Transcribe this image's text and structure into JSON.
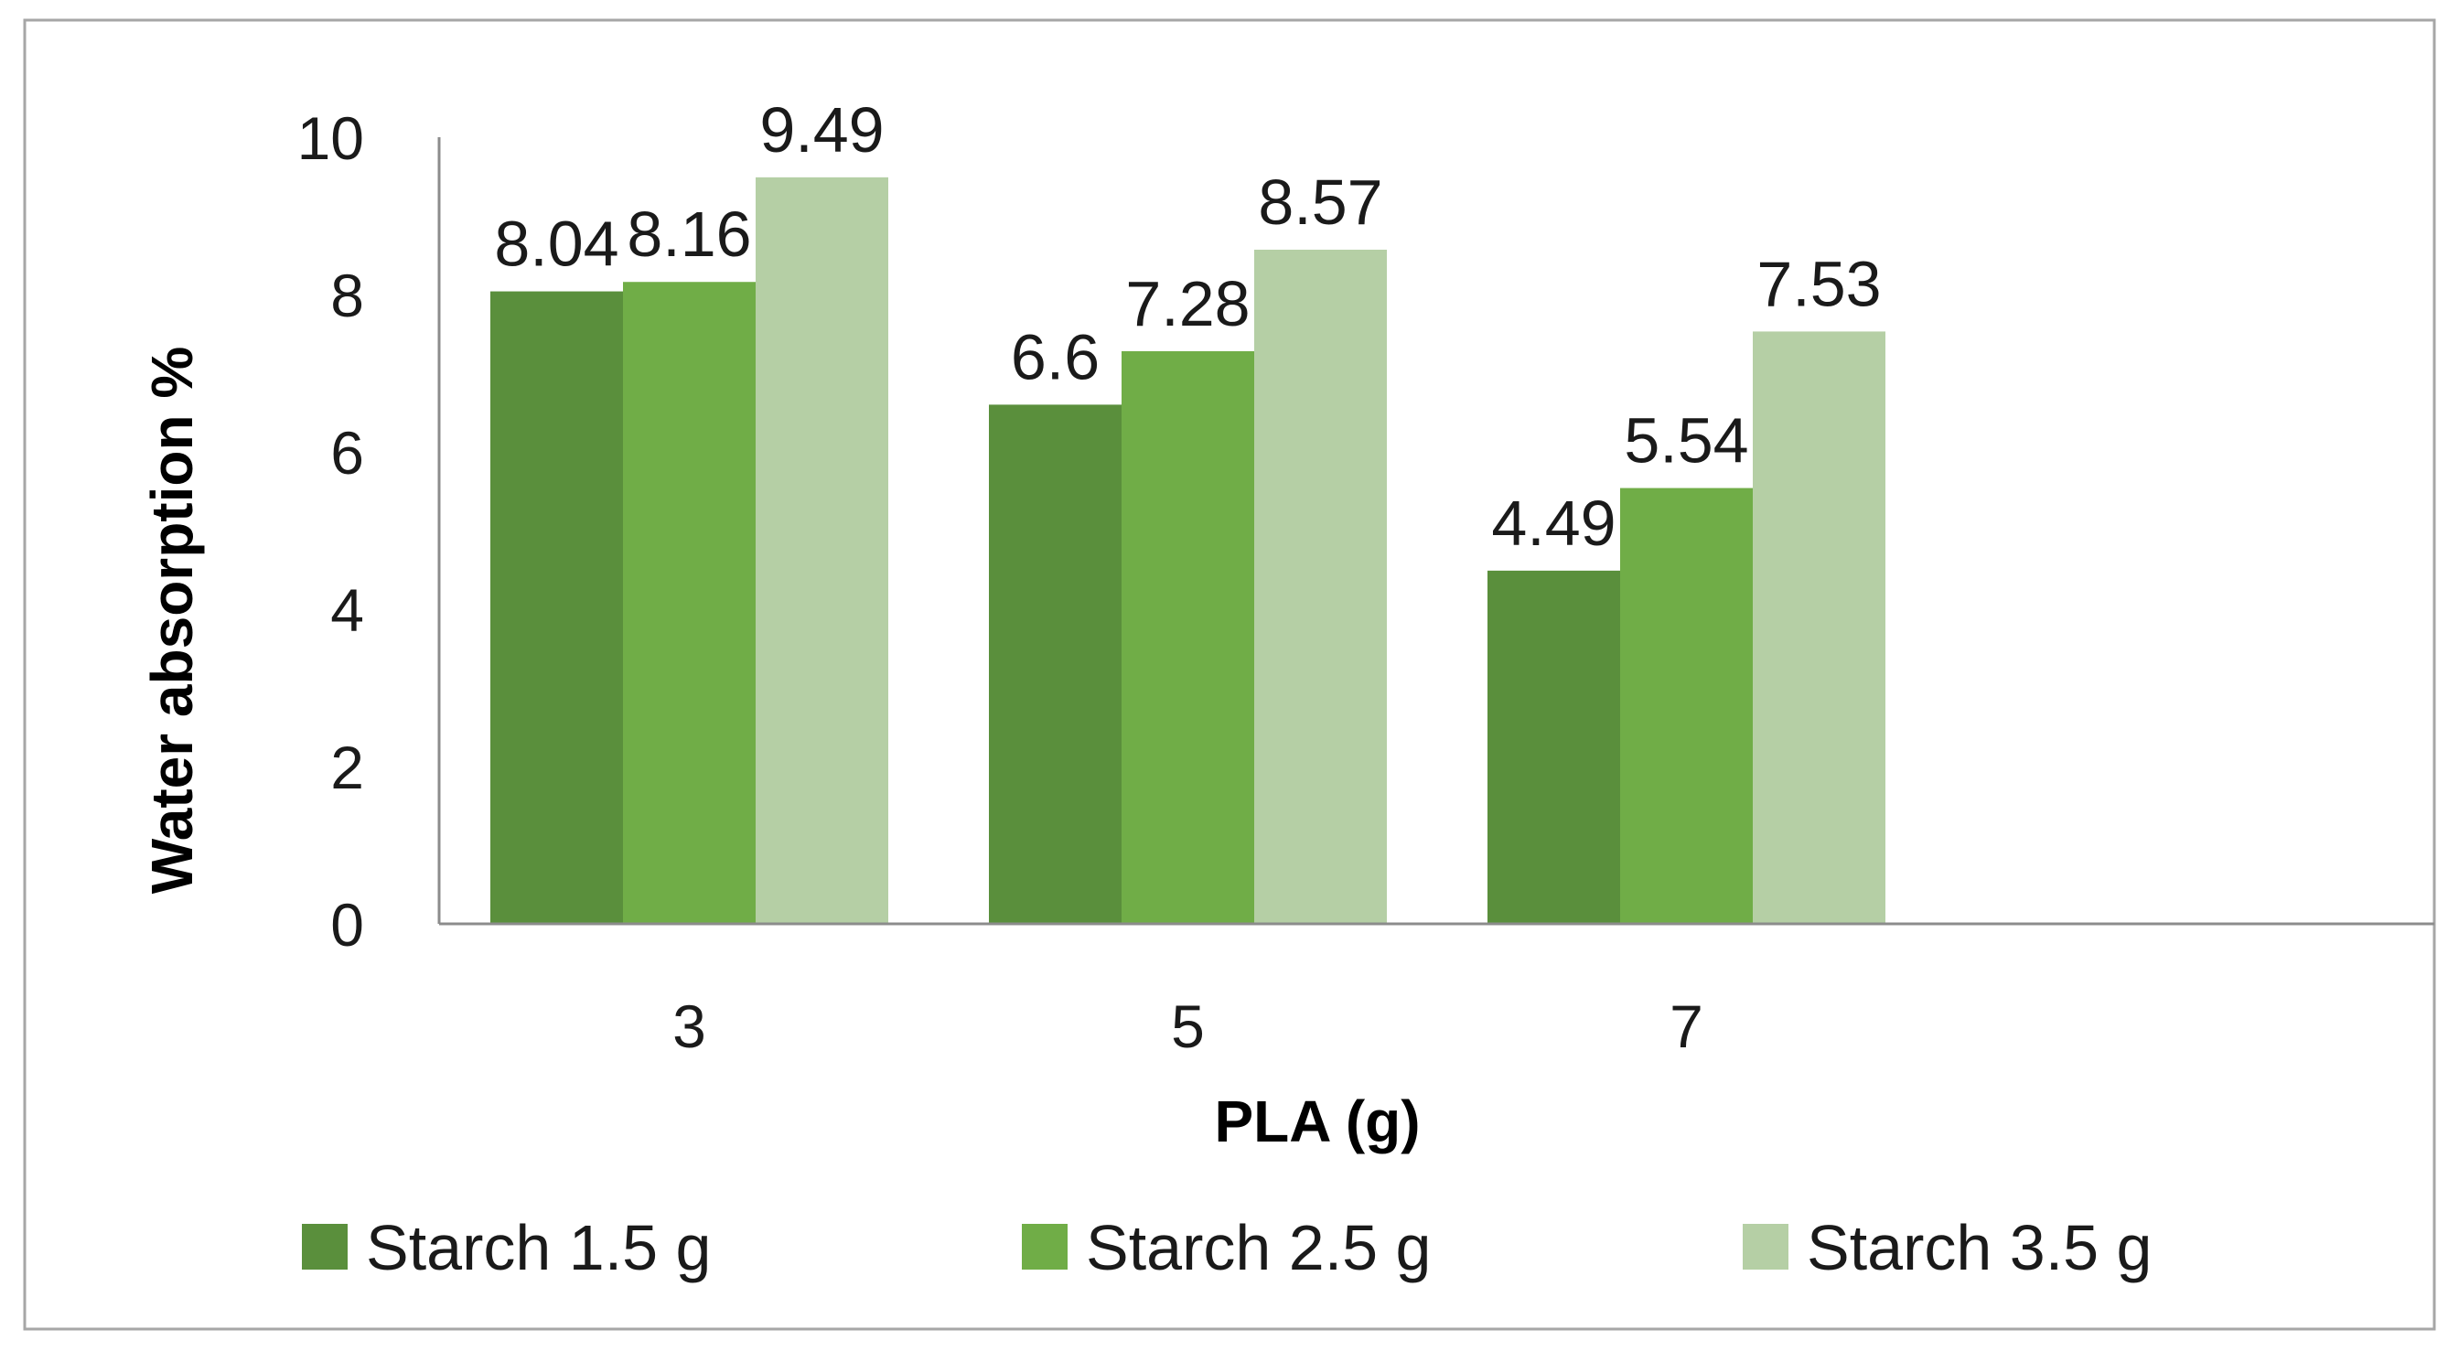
{
  "chart_data": {
    "type": "bar",
    "title": "",
    "xlabel": "PLA (g)",
    "ylabel": "Water absorption %",
    "categories": [
      "3",
      "5",
      "7"
    ],
    "ylim": [
      0,
      10
    ],
    "yticks": [
      0,
      2,
      4,
      6,
      8,
      10
    ],
    "grid": false,
    "legend_position": "bottom",
    "series": [
      {
        "name": "Starch 1.5 g",
        "values": [
          8.04,
          6.6,
          4.49
        ],
        "labels": [
          "8.04",
          "6.6",
          "4.49"
        ],
        "color": "#5a8f3c"
      },
      {
        "name": "Starch 2.5 g",
        "values": [
          8.16,
          7.28,
          5.54
        ],
        "labels": [
          "8.16",
          "7.28",
          "5.54"
        ],
        "color": "#70ad47"
      },
      {
        "name": "Starch 3.5 g",
        "values": [
          9.49,
          8.57,
          7.53
        ],
        "labels": [
          "9.49",
          "8.57",
          "7.53"
        ],
        "color": "#b5cfa5"
      }
    ]
  },
  "colors": {
    "frame": "#a6a6a6",
    "axis": "#8c8c8c"
  }
}
